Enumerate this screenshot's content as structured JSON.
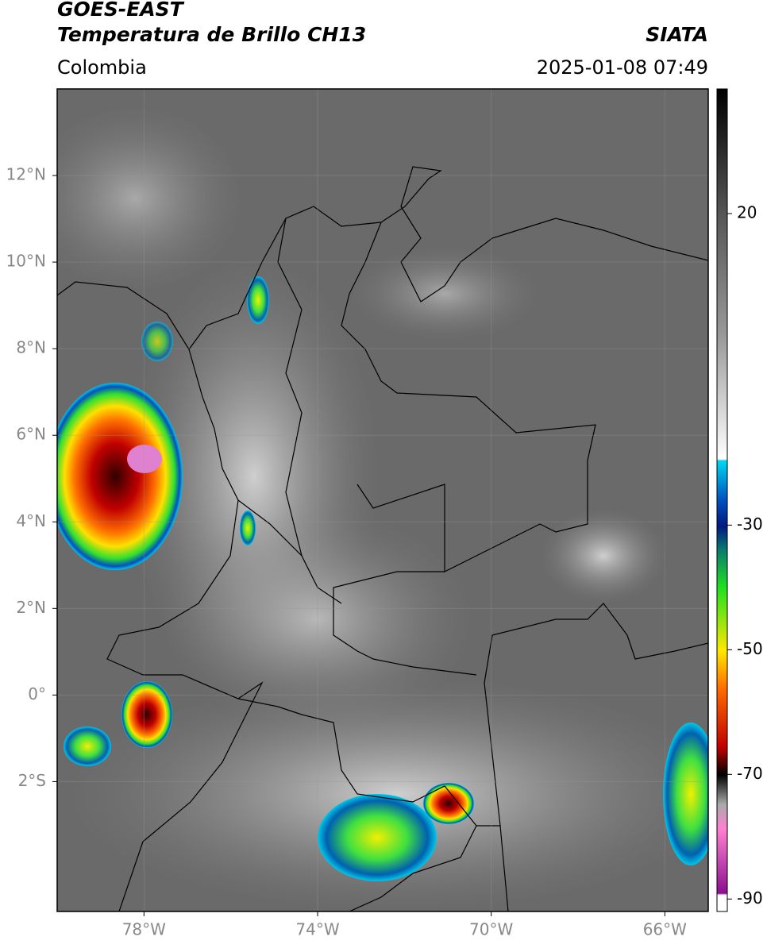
{
  "header": {
    "title": "GOES-EAST",
    "subtitle": "Temperatura de Brillo CH13",
    "source": "SIATA",
    "region": "Colombia",
    "datetime": "2025-01-08 07:49"
  },
  "map": {
    "xlim": [
      -80,
      -65
    ],
    "ylim": [
      -5,
      14
    ],
    "xticks": [
      {
        "value": -78,
        "label": "78°W"
      },
      {
        "value": -74,
        "label": "74°W"
      },
      {
        "value": -70,
        "label": "70°W"
      },
      {
        "value": -66,
        "label": "66°W"
      }
    ],
    "yticks": [
      {
        "value": 12,
        "label": "12°N"
      },
      {
        "value": 10,
        "label": "10°N"
      },
      {
        "value": 8,
        "label": "8°N"
      },
      {
        "value": 6,
        "label": "6°N"
      },
      {
        "value": 4,
        "label": "4°N"
      },
      {
        "value": 2,
        "label": "2°N"
      },
      {
        "value": 0,
        "label": "0°"
      },
      {
        "value": -2,
        "label": "2°S"
      }
    ]
  },
  "colorbar": {
    "lim": [
      -92,
      40
    ],
    "ticks": [
      20,
      -30,
      -50,
      -70,
      -90
    ]
  }
}
